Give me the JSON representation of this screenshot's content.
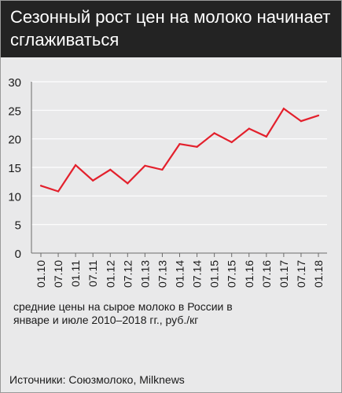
{
  "header": {
    "title": "Сезонный рост цен на молоко начинает сглаживаться"
  },
  "caption": "средние цены на сырое молоко в России в январе и июле 2010–2018 гг., руб./кг",
  "source": "Источники: Союзмолоко, Milknews",
  "colors": {
    "line": "#e3202c",
    "header_bg": "#232323",
    "panel_bg": "#e9e9ea",
    "grid": "#ffffff"
  },
  "chart_data": {
    "type": "line",
    "categories": [
      "01.10",
      "07.10",
      "01.11",
      "07.11",
      "01.12",
      "07.12",
      "01.13",
      "07.13",
      "01.14",
      "07.14",
      "01.15",
      "07.15",
      "01.16",
      "07.16",
      "01.17",
      "07.17",
      "01.18"
    ],
    "series": [
      {
        "values": [
          11.8,
          10.8,
          15.4,
          12.7,
          14.6,
          12.2,
          15.3,
          14.6,
          19.1,
          18.6,
          21.0,
          19.4,
          21.8,
          20.4,
          25.3,
          23.1,
          24.1
        ]
      }
    ],
    "yticks": [
      0,
      5,
      10,
      15,
      20,
      25,
      30
    ],
    "ylim": [
      0,
      30
    ],
    "grid": true,
    "xlabel": "",
    "ylabel": ""
  }
}
